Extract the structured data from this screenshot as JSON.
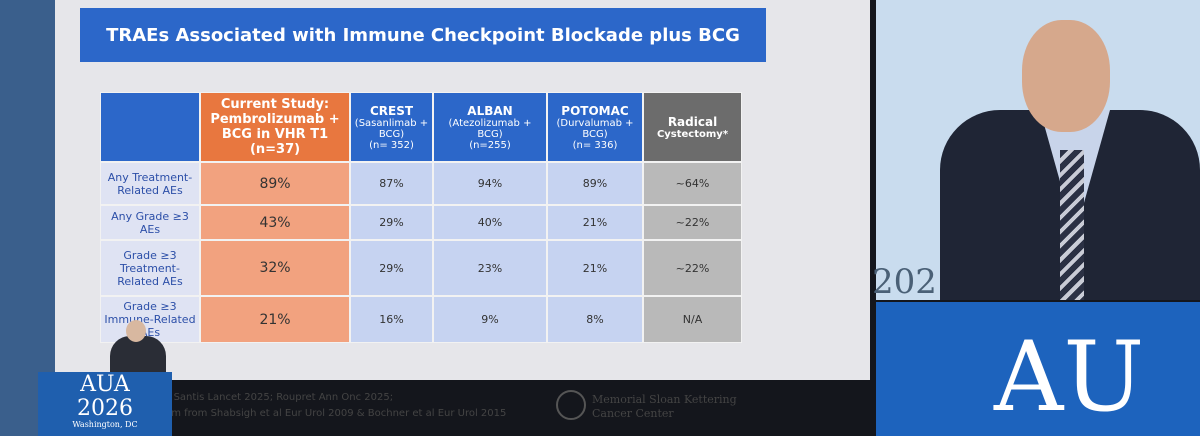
{
  "slide": {
    "title": "TRAEs Associated with Immune Checkpoint Blockade plus BCG",
    "table": {
      "header": [
        [
          "Current Study:",
          "Pembrolizumab +",
          "BCG in VHR T1 (n=37)"
        ],
        [
          "CREST",
          "(Sasanlimab +",
          "BCG)",
          "(n= 352)"
        ],
        [
          "ALBAN",
          "(Atezolizumab +",
          "BCG)",
          "(n=255)"
        ],
        [
          "POTOMAC",
          "(Durvalumab +",
          "BCG)",
          "(n= 336)"
        ],
        [
          "Radical",
          "Cystectomy*"
        ]
      ],
      "rows": [
        [
          "Any Treatment-Related AEs",
          "89%",
          "87%",
          "94%",
          "89%",
          "~64%"
        ],
        [
          "Any Grade ≥3 AEs",
          "43%",
          "29%",
          "40%",
          "21%",
          "~22%"
        ],
        [
          "Grade ≥3 Treatment-Related AEs",
          "32%",
          "29%",
          "23%",
          "21%",
          "~22%"
        ],
        [
          "Grade ≥3 Immune-Related AEs",
          "21%",
          "16%",
          "9%",
          "8%",
          "N/A"
        ]
      ]
    },
    "footnotes": [
      "; De Santis Lancet 2025; Roupret Ann Onc 2025;",
      "ystem from Shabsigh et al Eur Urol 2009 & Bochner et al Eur Urol 2015"
    ],
    "logo": [
      "Memorial Sloan Kettering",
      "Cancer Center"
    ]
  },
  "podium": {
    "name": "AUA",
    "year": "2026",
    "place": "Washington, DC"
  },
  "screen": {
    "year": "202",
    "name": "AU"
  }
}
